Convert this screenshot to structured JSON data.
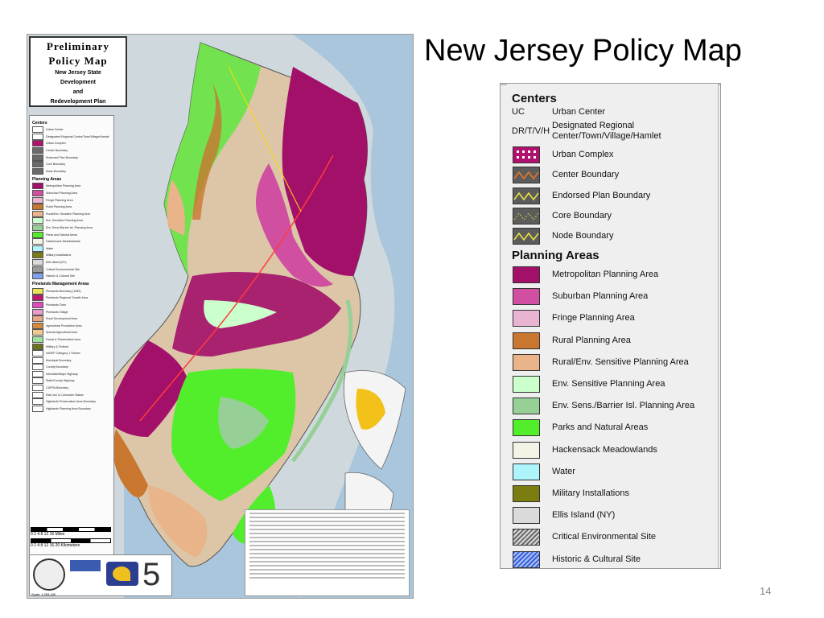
{
  "slide": {
    "title": "New Jersey Policy Map",
    "page_number": "14"
  },
  "poster": {
    "title_line1": "Preliminary",
    "title_line2": "Policy Map",
    "subtitle_lines": [
      "New Jersey State",
      "Development",
      "and",
      "Redevelopment Plan"
    ],
    "scale_bar_miles": "0   2   4      8       12      16 Miles",
    "scale_bar_km": "0  2  4      8      12     16     20 Kilometers",
    "scale_text": "Scale: 1:283,440",
    "page_digit": "5"
  },
  "legend": {
    "centers_heading": "Centers",
    "centers_text_items": [
      {
        "abbr": "UC",
        "label": "Urban Center"
      },
      {
        "abbr": "DR/T/V/H",
        "label": "Designated Regional\nCenter/Town/Village/Hamlet"
      }
    ],
    "centers_symbol_items": [
      {
        "label": "Urban Complex",
        "icon": "urban-complex",
        "color": "#b0106e"
      },
      {
        "label": "Center Boundary",
        "icon": "center-boundary",
        "color": "#e8742a"
      },
      {
        "label": "Endorsed Plan Boundary",
        "icon": "endorsed-plan-boundary",
        "color": "#e8e040"
      },
      {
        "label": "Core Boundary",
        "icon": "core-boundary",
        "color": "#d6d040"
      },
      {
        "label": "Node Boundary",
        "icon": "node-boundary",
        "color": "#e8e040"
      }
    ],
    "planning_heading": "Planning Areas",
    "planning_items": [
      {
        "label": "Metropolitan Planning Area",
        "color": "#a3106a"
      },
      {
        "label": "Suburban Planning Area",
        "color": "#d04fa0"
      },
      {
        "label": "Fringe Planning Area",
        "color": "#e9b3d2"
      },
      {
        "label": "Rural Planning Area",
        "color": "#c9772f"
      },
      {
        "label": "Rural/Env. Sensitive Planning Area",
        "color": "#e9b489"
      },
      {
        "label": "Env. Sensitive Planning Area",
        "color": "#cbffcb"
      },
      {
        "label": "Env. Sens./Barrier Isl. Planning Area",
        "color": "#96d096"
      },
      {
        "label": "Parks and Natural Areas",
        "color": "#52ee2c"
      },
      {
        "label": "Hackensack Meadowlands",
        "color": "#f3f3e6"
      },
      {
        "label": "Water",
        "color": "#aef4fb"
      },
      {
        "label": "Military Installations",
        "color": "#7b7d10"
      },
      {
        "label": "Ellis Island (NY)",
        "color": "#dadada"
      },
      {
        "label": "Critical Environmental Site",
        "color": "#9a9a9a"
      },
      {
        "label": "Historic & Cultural Site",
        "color": "#7fa0f0"
      }
    ]
  },
  "mini_legend": {
    "centers_heading": "Centers",
    "centers_labels": [
      "Urban Center",
      "Designated Regional Center/Town/Village/Hamlet",
      "Urban Complex",
      "Center Boundary",
      "Endorsed Plan Boundary",
      "Core Boundary",
      "Node Boundary"
    ],
    "planning_heading": "Planning Areas",
    "pinelands_heading": "Pinelands Management Areas",
    "pinelands_items": [
      {
        "label": "Pinelands Boundary (1983)",
        "color": "#ece35a"
      },
      {
        "label": "Pinelands Regional Growth Area",
        "color": "#c0186f"
      },
      {
        "label": "Pinelands Town",
        "color": "#e04ac0"
      },
      {
        "label": "Pinelands Village",
        "color": "#e99bcc"
      },
      {
        "label": "Rural Development Area",
        "color": "#e7a88a"
      },
      {
        "label": "Agricultural Production Area",
        "color": "#d48a3a"
      },
      {
        "label": "Special Agricultural Area",
        "color": "#f0c890"
      },
      {
        "label": "Forest & Preservation Area",
        "color": "#9fe29f"
      },
      {
        "label": "Military & Federal",
        "color": "#6d7220"
      },
      {
        "label": "NJDEP Category 1 Stream",
        "color": "#ffffff"
      },
      {
        "label": "Municipal Boundary",
        "color": "#ffffff"
      },
      {
        "label": "County Boundary",
        "color": "#ffffff"
      },
      {
        "label": "Interstate/Major Highway",
        "color": "#ffffff"
      },
      {
        "label": "State/County Highway",
        "color": "#ffffff"
      },
      {
        "label": "CAFRA Boundary",
        "color": "#ffffff"
      },
      {
        "label": "Rail Line & Commuter Station",
        "color": "#ffffff"
      },
      {
        "label": "Highlands Preservation Area Boundary",
        "color": "#ffffff"
      },
      {
        "label": "Highlands Planning Area Boundary",
        "color": "#ffffff"
      }
    ]
  }
}
